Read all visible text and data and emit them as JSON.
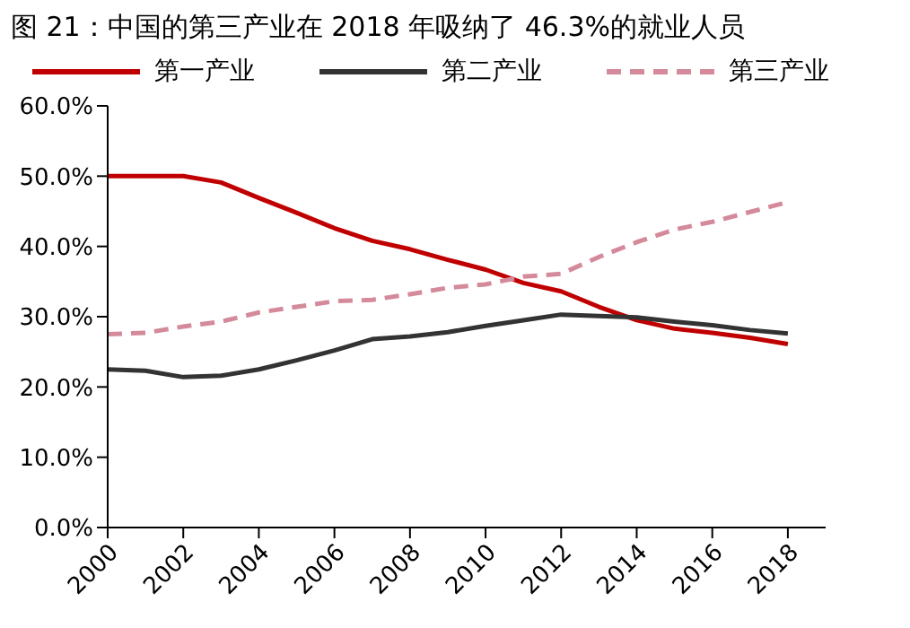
{
  "chart_data": {
    "type": "line",
    "title": "图 21：中国的第三产业在 2018 年吸纳了 46.3%的就业人员",
    "x": [
      2000,
      2001,
      2002,
      2003,
      2004,
      2005,
      2006,
      2007,
      2008,
      2009,
      2010,
      2011,
      2012,
      2013,
      2014,
      2015,
      2016,
      2017,
      2018
    ],
    "series": [
      {
        "name": "第一产业",
        "color": "#c00000",
        "line_style": "solid",
        "values": [
          50.0,
          50.0,
          50.0,
          49.1,
          46.9,
          44.8,
          42.6,
          40.8,
          39.6,
          38.1,
          36.7,
          34.8,
          33.6,
          31.4,
          29.5,
          28.3,
          27.7,
          27.0,
          26.1
        ]
      },
      {
        "name": "第二产业",
        "color": "#333333",
        "line_style": "solid",
        "values": [
          22.5,
          22.3,
          21.4,
          21.6,
          22.5,
          23.8,
          25.2,
          26.8,
          27.2,
          27.8,
          28.7,
          29.5,
          30.3,
          30.1,
          29.9,
          29.3,
          28.8,
          28.1,
          27.6
        ]
      },
      {
        "name": "第三产业",
        "color": "#d48a9b",
        "line_style": "dashed",
        "values": [
          27.5,
          27.7,
          28.6,
          29.3,
          30.6,
          31.4,
          32.2,
          32.4,
          33.2,
          34.1,
          34.6,
          35.7,
          36.1,
          38.5,
          40.6,
          42.4,
          43.5,
          44.9,
          46.3
        ]
      }
    ],
    "xlim": [
      2000,
      2019
    ],
    "xticks": [
      2000,
      2002,
      2004,
      2006,
      2008,
      2010,
      2012,
      2014,
      2016,
      2018
    ],
    "ylim": [
      0,
      60
    ],
    "yticks": [
      {
        "value": 0,
        "label": "0.0%"
      },
      {
        "value": 10,
        "label": "10.0%"
      },
      {
        "value": 20,
        "label": "20.0%"
      },
      {
        "value": 30,
        "label": "30.0%"
      },
      {
        "value": 40,
        "label": "40.0%"
      },
      {
        "value": 50,
        "label": "50.0%"
      },
      {
        "value": 60,
        "label": "60.0%"
      }
    ],
    "grid": false,
    "legend": "top",
    "marker": "none"
  }
}
